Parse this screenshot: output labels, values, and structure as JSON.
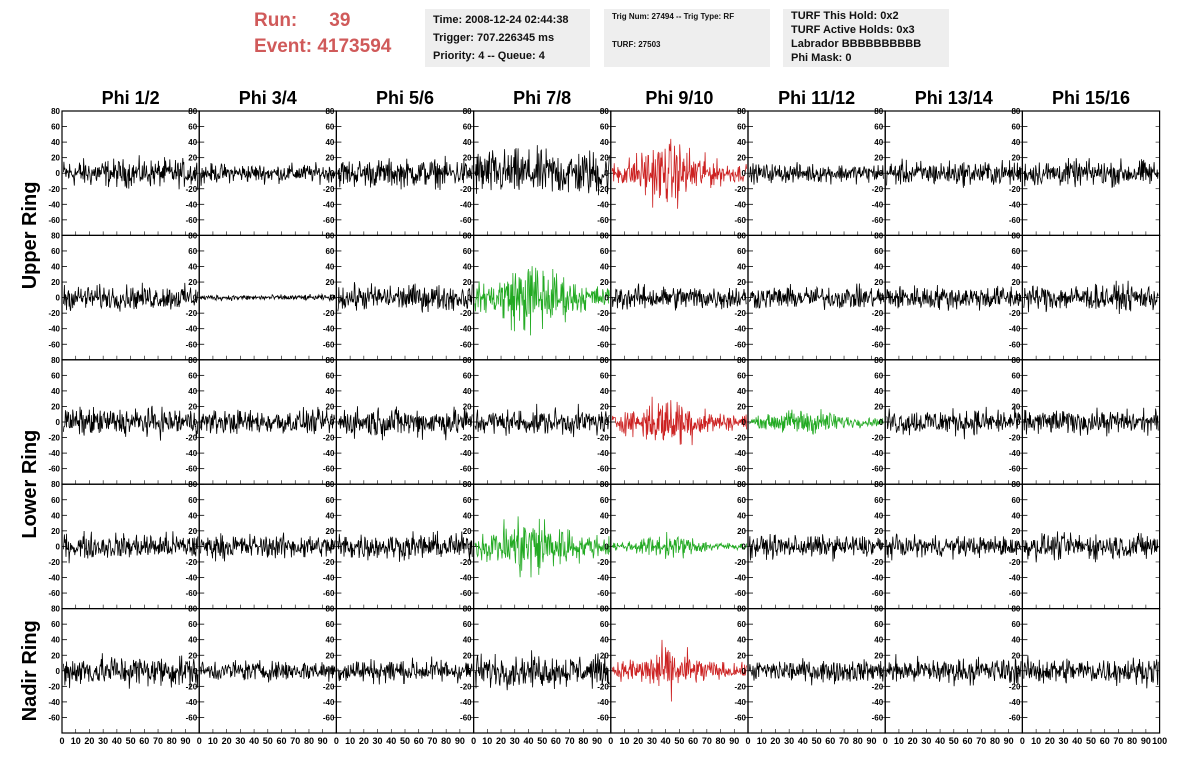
{
  "header": {
    "run_label": "Run:",
    "run_value": "39",
    "event_label": "Event:",
    "event_value": "4173594",
    "info_box_1": [
      "Time: 2008-12-24 02:44:38",
      "Trigger: 707.226345 ms",
      "Priority: 4 -- Queue: 4"
    ],
    "info_box_2": [
      "Trig Num: 27494 -- Trig Type: RF",
      "TURF: 27503"
    ],
    "info_box_3": [
      "TURF This Hold: 0x2",
      "TURF Active Holds: 0x3",
      "Labrador BBBBBBBBBB",
      "Phi Mask: 0"
    ]
  },
  "colors": {
    "run_text": "#d05a5a",
    "trace_default": "#000000",
    "trace_red": "#cc2222",
    "trace_green": "#22aa22",
    "box_bg": "#eeeeee"
  },
  "chart_data": {
    "type": "line",
    "columns": [
      "Phi 1/2",
      "Phi 3/4",
      "Phi 5/6",
      "Phi 7/8",
      "Phi 9/10",
      "Phi 11/12",
      "Phi 13/14",
      "Phi 15/16"
    ],
    "ring_labels": [
      "Upper Ring",
      "Lower Ring",
      "Nadir Ring"
    ],
    "rows": 5,
    "ring_rows": [
      [
        0,
        1
      ],
      [
        2,
        3
      ],
      [
        4,
        4
      ]
    ],
    "xlim": [
      0,
      100
    ],
    "ylim": [
      -80,
      80
    ],
    "yticks": [
      -60,
      -40,
      -20,
      0,
      20,
      40,
      60,
      80
    ],
    "xticks": [
      0,
      10,
      20,
      30,
      40,
      50,
      60,
      70,
      80,
      90,
      100
    ],
    "x_tick_labels": [
      "0",
      "10",
      "20",
      "30",
      "40",
      "50",
      "60",
      "70",
      "80",
      "90",
      "100"
    ],
    "waveform_samples": 260,
    "grid": false,
    "legend": "none",
    "panels": [
      [
        {
          "color": "black",
          "amp": 15
        },
        {
          "color": "black",
          "amp": 10
        },
        {
          "color": "black",
          "amp": 15
        },
        {
          "color": "black",
          "amp": 25
        },
        {
          "color": "red",
          "amp": 28
        },
        {
          "color": "black",
          "amp": 10
        },
        {
          "color": "black",
          "amp": 13
        },
        {
          "color": "black",
          "amp": 14
        }
      ],
      [
        {
          "color": "black",
          "amp": 13
        },
        {
          "color": "black",
          "amp": 3
        },
        {
          "color": "black",
          "amp": 14
        },
        {
          "color": "green",
          "amp": 32
        },
        {
          "color": "black",
          "amp": 13
        },
        {
          "color": "black",
          "amp": 12
        },
        {
          "color": "black",
          "amp": 13
        },
        {
          "color": "black",
          "amp": 14
        }
      ],
      [
        {
          "color": "black",
          "amp": 15
        },
        {
          "color": "black",
          "amp": 13
        },
        {
          "color": "black",
          "amp": 16
        },
        {
          "color": "black",
          "amp": 14
        },
        {
          "color": "red",
          "amp": 22
        },
        {
          "color": "green",
          "amp": 12
        },
        {
          "color": "black",
          "amp": 14
        },
        {
          "color": "black",
          "amp": 13
        }
      ],
      [
        {
          "color": "black",
          "amp": 14
        },
        {
          "color": "black",
          "amp": 13
        },
        {
          "color": "black",
          "amp": 14
        },
        {
          "color": "green",
          "amp": 30
        },
        {
          "color": "green",
          "amp": 10
        },
        {
          "color": "black",
          "amp": 12
        },
        {
          "color": "black",
          "amp": 11
        },
        {
          "color": "black",
          "amp": 14
        }
      ],
      [
        {
          "color": "black",
          "amp": 17
        },
        {
          "color": "black",
          "amp": 11
        },
        {
          "color": "black",
          "amp": 13
        },
        {
          "color": "black",
          "amp": 17
        },
        {
          "color": "red",
          "amp": 20
        },
        {
          "color": "black",
          "amp": 12
        },
        {
          "color": "black",
          "amp": 14
        },
        {
          "color": "black",
          "amp": 14
        }
      ]
    ]
  }
}
